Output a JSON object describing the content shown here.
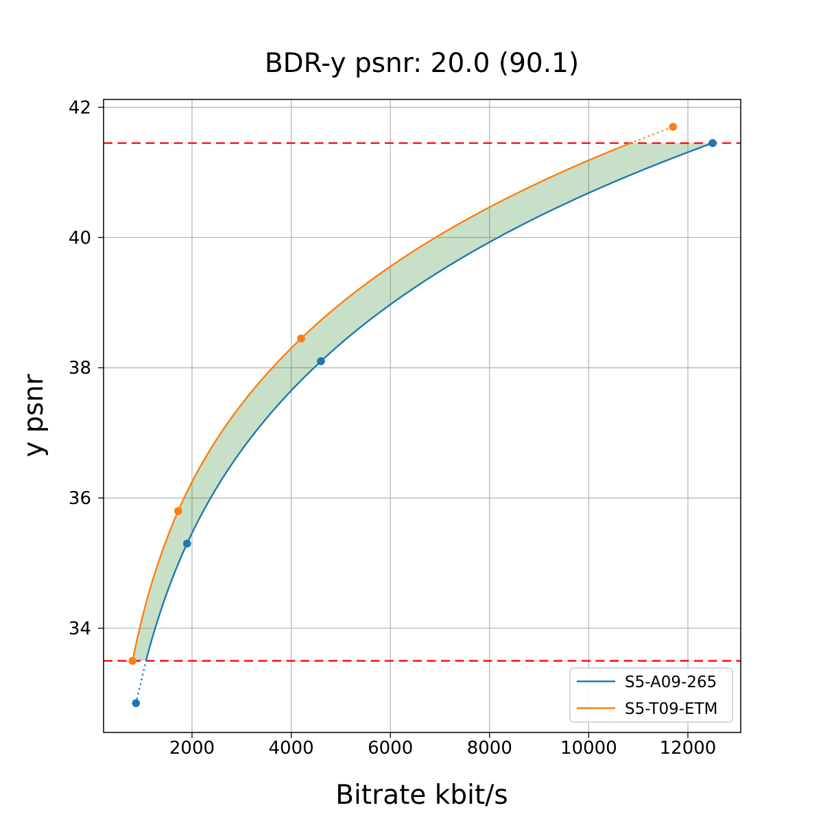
{
  "chart_data": {
    "type": "line",
    "title": "BDR-y psnr: 20.0 (90.1)",
    "xlabel": "Bitrate kbit/s",
    "ylabel": "y psnr",
    "xlim": [
      216,
      13065
    ],
    "ylim": [
      32.4,
      42.12
    ],
    "x_ticks": [
      2000,
      4000,
      6000,
      8000,
      10000,
      12000
    ],
    "y_ticks": [
      34,
      36,
      38,
      40,
      42
    ],
    "grid": true,
    "grid_color": "#b0b0b0",
    "overlap_psnr_range": [
      33.5,
      41.45
    ],
    "hline_color": "#ff0000",
    "hline_style": "dashed",
    "shade_color": "#379137",
    "shade_opacity": 0.28,
    "legend_position": "lower right",
    "series": [
      {
        "name": "S5-A09-265",
        "color": "#1f77b4",
        "points": [
          [
            870,
            32.85
          ],
          [
            1900,
            35.3
          ],
          [
            4600,
            38.1
          ],
          [
            12500,
            41.45
          ]
        ]
      },
      {
        "name": "S5-T09-ETM",
        "color": "#ff7f0e",
        "points": [
          [
            800,
            33.5
          ],
          [
            1720,
            35.8
          ],
          [
            4200,
            38.45
          ],
          [
            11700,
            41.7
          ]
        ]
      }
    ]
  }
}
